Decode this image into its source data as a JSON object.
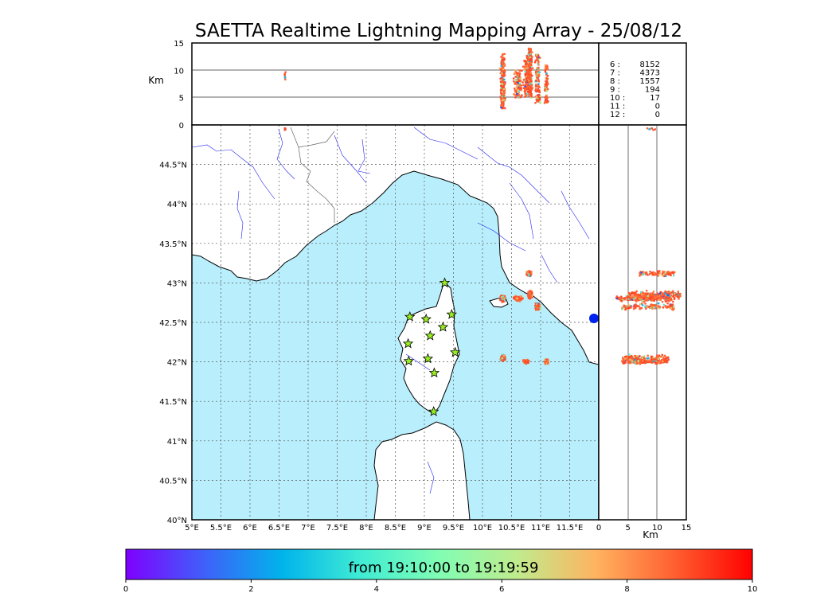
{
  "chart_data": {
    "type": "scatter",
    "title": "SAETTA Realtime Lightning Mapping Array - 25/08/12",
    "map": {
      "xlim": [
        5,
        12
      ],
      "ylim": [
        40,
        45
      ],
      "x_ticks": [
        "5°E",
        "5.5°E",
        "6°E",
        "6.5°E",
        "7°E",
        "7.5°E",
        "8°E",
        "8.5°E",
        "9°E",
        "9.5°E",
        "10°E",
        "10.5°E",
        "11°E",
        "11.5°E"
      ],
      "y_ticks": [
        "40°N",
        "40.5°N",
        "41°N",
        "41.5°N",
        "42°N",
        "42.5°N",
        "43°N",
        "43.5°N",
        "44°N",
        "44.5°N"
      ],
      "grid": true,
      "stations": [
        {
          "lon": 9.35,
          "lat": 43.0
        },
        {
          "lon": 8.75,
          "lat": 42.57
        },
        {
          "lon": 9.03,
          "lat": 42.54
        },
        {
          "lon": 9.47,
          "lat": 42.6
        },
        {
          "lon": 9.32,
          "lat": 42.44
        },
        {
          "lon": 9.1,
          "lat": 42.33
        },
        {
          "lon": 8.72,
          "lat": 42.23
        },
        {
          "lon": 9.53,
          "lat": 42.12
        },
        {
          "lon": 9.06,
          "lat": 42.04
        },
        {
          "lon": 8.73,
          "lat": 42.01
        },
        {
          "lon": 9.17,
          "lat": 41.86
        },
        {
          "lon": 9.16,
          "lat": 41.37
        }
      ]
    },
    "top_panel": {
      "ylabel": "Km",
      "ylim": [
        0,
        15
      ],
      "y_ticks": [
        "0",
        "5",
        "10",
        "15"
      ]
    },
    "side_panel": {
      "xlabel": "Km",
      "xlim": [
        0,
        15
      ],
      "x_ticks": [
        "0",
        "5",
        "10",
        "15"
      ]
    },
    "clusters": [
      {
        "lon": 10.35,
        "lat": 42.8,
        "alt_range": [
          3,
          13
        ],
        "lon_spread": 0.05,
        "lat_spread": 0.05,
        "count": 160
      },
      {
        "lon": 10.62,
        "lat": 42.8,
        "alt_range": [
          5,
          10
        ],
        "lon_spread": 0.1,
        "lat_spread": 0.04,
        "count": 120
      },
      {
        "lon": 10.82,
        "lat": 42.85,
        "alt_range": [
          5,
          14
        ],
        "lon_spread": 0.05,
        "lat_spread": 0.06,
        "count": 180
      },
      {
        "lon": 10.8,
        "lat": 43.12,
        "alt_range": [
          7,
          13
        ],
        "lon_spread": 0.05,
        "lat_spread": 0.05,
        "count": 90
      },
      {
        "lon": 10.95,
        "lat": 42.7,
        "alt_range": [
          4,
          13
        ],
        "lon_spread": 0.06,
        "lat_spread": 0.05,
        "count": 120
      },
      {
        "lon": 10.35,
        "lat": 42.05,
        "alt_range": [
          4,
          12
        ],
        "lon_spread": 0.05,
        "lat_spread": 0.05,
        "count": 110
      },
      {
        "lon": 10.75,
        "lat": 42.0,
        "alt_range": [
          5,
          12
        ],
        "lon_spread": 0.06,
        "lat_spread": 0.03,
        "count": 90
      },
      {
        "lon": 11.1,
        "lat": 42.0,
        "alt_range": [
          4,
          11
        ],
        "lon_spread": 0.04,
        "lat_spread": 0.04,
        "count": 90
      },
      {
        "lon": 6.6,
        "lat": 44.95,
        "alt_range": [
          8,
          11
        ],
        "lon_spread": 0.03,
        "lat_spread": 0.02,
        "count": 6
      }
    ],
    "legend": [
      {
        "label": "6  :",
        "count": "8152",
        "highlight": true
      },
      {
        "label": "7  :",
        "count": "4373",
        "highlight": false
      },
      {
        "label": "8  :",
        "count": "1557",
        "highlight": false
      },
      {
        "label": "9  :",
        "count": "194",
        "highlight": false
      },
      {
        "label": "10 :",
        "count": "17",
        "highlight": false
      },
      {
        "label": "11 :",
        "count": "0",
        "highlight": false
      },
      {
        "label": "12 :",
        "count": "0",
        "highlight": false
      }
    ],
    "colorbar": {
      "range": [
        0,
        10
      ],
      "ticks": [
        "0",
        "2",
        "4",
        "6",
        "8",
        "10"
      ],
      "label": "from 19:10:00 to 19:19:59",
      "colors": [
        "#7f00ff",
        "#3f60fa",
        "#00b4eb",
        "#40ecd4",
        "#80feb4",
        "#c0eb8d",
        "#ffb360",
        "#ff6030",
        "#ff0000"
      ]
    },
    "colors": {
      "sea": "#b9effc",
      "land": "#ffffff",
      "coast": "#000000",
      "rivers": "#2222ee",
      "borders": "#666666",
      "station_fill": "#99ee22",
      "highlight": "#ff0000"
    }
  }
}
